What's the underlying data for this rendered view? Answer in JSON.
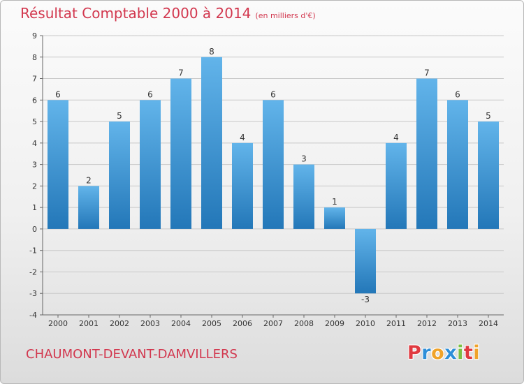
{
  "header": {
    "title": "Résultat Comptable 2000 à 2014",
    "unit": "(en milliers d'€)"
  },
  "footer": {
    "commune": "CHAUMONT-DEVANT-DAMVILLERS",
    "logo": [
      "P",
      "r",
      "o",
      "x",
      "i",
      "t",
      "i"
    ],
    "logo_colors": [
      "#e0393f",
      "#2e8fd9",
      "#f0a32a",
      "#2e8fd9",
      "#7bc043",
      "#e0393f",
      "#f0a32a"
    ]
  },
  "colors": {
    "bar_top": "#62b4ea",
    "bar_bottom": "#2377b8",
    "title": "#d2374e",
    "grid": "#c8c8c8"
  },
  "chart_data": {
    "type": "bar",
    "title": "Résultat Comptable 2000 à 2014",
    "xlabel": "",
    "ylabel": "",
    "categories": [
      "2000",
      "2001",
      "2002",
      "2003",
      "2004",
      "2005",
      "2006",
      "2007",
      "2008",
      "2009",
      "2010",
      "2011",
      "2012",
      "2013",
      "2014"
    ],
    "values": [
      6,
      2,
      5,
      6,
      7,
      8,
      4,
      6,
      3,
      1,
      -3,
      4,
      7,
      6,
      5
    ],
    "ylim": [
      -4,
      9
    ],
    "yticks": [
      -4,
      -3,
      -2,
      -1,
      0,
      1,
      2,
      3,
      4,
      5,
      6,
      7,
      8,
      9
    ],
    "grid": true,
    "data_labels": true
  }
}
